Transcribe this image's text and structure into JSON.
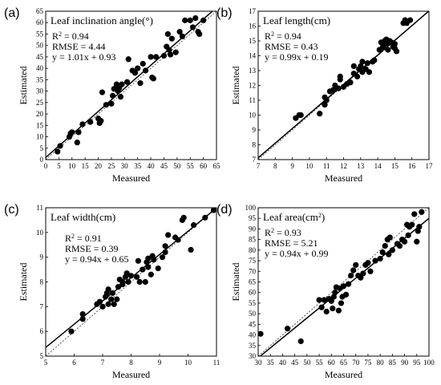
{
  "chart_data": [
    {
      "type": "scatter",
      "panel_label": "(a)",
      "title": "Leaf inclination angle(°)",
      "xlabel": "Measured",
      "ylabel": "Estimated",
      "xlim": [
        0,
        65
      ],
      "ylim": [
        0,
        65
      ],
      "xticks": [
        0,
        5,
        10,
        15,
        20,
        25,
        30,
        35,
        40,
        45,
        50,
        55,
        60,
        65
      ],
      "yticks": [
        0,
        5,
        10,
        15,
        20,
        25,
        30,
        35,
        40,
        45,
        50,
        55,
        60,
        65
      ],
      "stats": {
        "r2": "R² = 0.94",
        "rmse": "RMSE = 4.44",
        "equation": "y = 1.01x + 0.93"
      },
      "fit": {
        "slope": 1.01,
        "intercept": 0.93
      },
      "points": [
        [
          4.5,
          3.5
        ],
        [
          5.5,
          6
        ],
        [
          9,
          10
        ],
        [
          9.5,
          11.5
        ],
        [
          10,
          12
        ],
        [
          12,
          7.5
        ],
        [
          12.5,
          12
        ],
        [
          14,
          15.5
        ],
        [
          17,
          16.5
        ],
        [
          20,
          18
        ],
        [
          20.5,
          16
        ],
        [
          21,
          17
        ],
        [
          21.5,
          29.5
        ],
        [
          23,
          24
        ],
        [
          25,
          24.5
        ],
        [
          25.5,
          28
        ],
        [
          26,
          31
        ],
        [
          27,
          33
        ],
        [
          27.5,
          30
        ],
        [
          28,
          31.5
        ],
        [
          28.5,
          27.5
        ],
        [
          29,
          33
        ],
        [
          31,
          34
        ],
        [
          31.5,
          44
        ],
        [
          33,
          39
        ],
        [
          34,
          38
        ],
        [
          35,
          40
        ],
        [
          36,
          33.5
        ],
        [
          37,
          42
        ],
        [
          38,
          39
        ],
        [
          40,
          45
        ],
        [
          40.5,
          36
        ],
        [
          41,
          35.5
        ],
        [
          42,
          45
        ],
        [
          45,
          45.5
        ],
        [
          46,
          49.5
        ],
        [
          46.5,
          55
        ],
        [
          47,
          48
        ],
        [
          47.5,
          46
        ],
        [
          48,
          53
        ],
        [
          49.5,
          47
        ],
        [
          51,
          56
        ],
        [
          52,
          54
        ],
        [
          53,
          61
        ],
        [
          55,
          61
        ],
        [
          56,
          58
        ],
        [
          57,
          62
        ],
        [
          58,
          56
        ],
        [
          58.5,
          55
        ],
        [
          60,
          61
        ]
      ]
    },
    {
      "type": "scatter",
      "panel_label": "(b)",
      "title": "Leaf length(cm)",
      "xlabel": "Measured",
      "ylabel": "Estimated",
      "xlim": [
        7,
        17
      ],
      "ylim": [
        7,
        17
      ],
      "xticks": [
        7,
        8,
        9,
        10,
        11,
        12,
        13,
        14,
        15,
        16,
        17
      ],
      "yticks": [
        7,
        8,
        9,
        10,
        11,
        12,
        13,
        14,
        15,
        16,
        17
      ],
      "stats": {
        "r2": "R² = 0.94",
        "rmse": "RMSE = 0.43",
        "equation": "y = 0.99x + 0.19"
      },
      "fit": {
        "slope": 0.99,
        "intercept": 0.19
      },
      "points": [
        [
          9.2,
          9.8
        ],
        [
          9.4,
          10
        ],
        [
          9.5,
          10
        ],
        [
          10.6,
          10.1
        ],
        [
          10.9,
          10.7
        ],
        [
          10.9,
          11.2
        ],
        [
          11,
          11
        ],
        [
          11.2,
          11.6
        ],
        [
          11.4,
          11.7
        ],
        [
          11.5,
          12
        ],
        [
          11.7,
          11.8
        ],
        [
          11.8,
          12.4
        ],
        [
          11.8,
          12.6
        ],
        [
          12,
          11.9
        ],
        [
          12.2,
          12.1
        ],
        [
          12.4,
          12.2
        ],
        [
          12.6,
          12.8
        ],
        [
          12.6,
          13.3
        ],
        [
          12.8,
          12.6
        ],
        [
          12.9,
          13.1
        ],
        [
          13,
          13.3
        ],
        [
          13.1,
          13.6
        ],
        [
          13.1,
          12.9
        ],
        [
          13.3,
          13.1
        ],
        [
          13.4,
          13.5
        ],
        [
          13.5,
          12.9
        ],
        [
          13.7,
          13.6
        ],
        [
          13.8,
          13.7
        ],
        [
          14.1,
          14.4
        ],
        [
          14.2,
          14.9
        ],
        [
          14.3,
          14.6
        ],
        [
          14.4,
          15
        ],
        [
          14.5,
          15.1
        ],
        [
          14.5,
          14.8
        ],
        [
          14.6,
          14.4
        ],
        [
          14.7,
          15
        ],
        [
          14.8,
          14.9
        ],
        [
          14.9,
          14.6
        ],
        [
          15,
          14.5
        ],
        [
          15,
          14.8
        ],
        [
          15.1,
          14.3
        ],
        [
          15.5,
          16.2
        ],
        [
          15.6,
          16.4
        ],
        [
          15.7,
          16.2
        ],
        [
          15.9,
          16.4
        ]
      ]
    },
    {
      "type": "scatter",
      "panel_label": "(c)",
      "title": "Leaf width(cm)",
      "xlabel": "Measured",
      "ylabel": "Estimated",
      "xlim": [
        5,
        11
      ],
      "ylim": [
        5,
        11
      ],
      "xticks": [
        5,
        6,
        7,
        8,
        9,
        10,
        11
      ],
      "yticks": [
        5,
        6,
        7,
        8,
        9,
        10,
        11
      ],
      "stats": {
        "r2": "R² = 0.91",
        "rmse": "RMSE = 0.39",
        "equation": "y = 0.94x + 0.65"
      },
      "fit": {
        "slope": 0.94,
        "intercept": 0.65
      },
      "points": [
        [
          5.9,
          6
        ],
        [
          6.3,
          6.5
        ],
        [
          6.3,
          6.7
        ],
        [
          6.8,
          7.1
        ],
        [
          6.9,
          7.2
        ],
        [
          7,
          7
        ],
        [
          7.1,
          7.4
        ],
        [
          7.15,
          7.55
        ],
        [
          7.2,
          7.1
        ],
        [
          7.2,
          7.7
        ],
        [
          7.3,
          7.3
        ],
        [
          7.35,
          7.55
        ],
        [
          7.4,
          7.1
        ],
        [
          7.5,
          7.3
        ],
        [
          7.55,
          7.8
        ],
        [
          7.6,
          8.1
        ],
        [
          7.7,
          8
        ],
        [
          7.7,
          7.9
        ],
        [
          7.8,
          8.2
        ],
        [
          7.85,
          8.35
        ],
        [
          7.9,
          8
        ],
        [
          8,
          8.25
        ],
        [
          8.2,
          8.2
        ],
        [
          8.25,
          8.85
        ],
        [
          8.3,
          8
        ],
        [
          8.4,
          8.5
        ],
        [
          8.5,
          8
        ],
        [
          8.55,
          8.8
        ],
        [
          8.6,
          8.6
        ],
        [
          8.6,
          8.95
        ],
        [
          8.7,
          8.3
        ],
        [
          8.75,
          9.05
        ],
        [
          8.8,
          8.9
        ],
        [
          8.95,
          8.55
        ],
        [
          9.1,
          9
        ],
        [
          9.2,
          9.2
        ],
        [
          9.2,
          9.45
        ],
        [
          9.3,
          9.9
        ],
        [
          9.55,
          9.8
        ],
        [
          9.65,
          9.7
        ],
        [
          9.8,
          10.5
        ],
        [
          9.85,
          10.6
        ],
        [
          10.1,
          9.3
        ],
        [
          10.2,
          10.3
        ],
        [
          10.6,
          10.6
        ],
        [
          10.9,
          10.9
        ]
      ]
    },
    {
      "type": "scatter",
      "panel_label": "(d)",
      "title": "Leaf area(cm²)",
      "xlabel": "Measured",
      "ylabel": "Estimated",
      "xlim": [
        30,
        100
      ],
      "ylim": [
        30,
        100
      ],
      "xticks": [
        30,
        35,
        40,
        45,
        50,
        55,
        60,
        65,
        70,
        75,
        80,
        85,
        90,
        95,
        100
      ],
      "yticks": [
        30,
        35,
        40,
        45,
        50,
        55,
        60,
        65,
        70,
        75,
        80,
        85,
        90,
        95,
        100
      ],
      "stats": {
        "r2": "R² = 0.93",
        "rmse": "RMSE = 5.21",
        "equation": "y = 0.94x + 0.99"
      },
      "fit": {
        "slope": 0.94,
        "intercept": 0.99
      },
      "points": [
        [
          31,
          40.5
        ],
        [
          42,
          43
        ],
        [
          47.5,
          37
        ],
        [
          55,
          56.5
        ],
        [
          56,
          53
        ],
        [
          57,
          56.5
        ],
        [
          58,
          51
        ],
        [
          59,
          57
        ],
        [
          60,
          56
        ],
        [
          60.5,
          52.5
        ],
        [
          61,
          58
        ],
        [
          61.5,
          60
        ],
        [
          62,
          62.5
        ],
        [
          63,
          51.5
        ],
        [
          63.5,
          62
        ],
        [
          64,
          55
        ],
        [
          64.5,
          58
        ],
        [
          65,
          63
        ],
        [
          66,
          59
        ],
        [
          67,
          64
        ],
        [
          68,
          68
        ],
        [
          69,
          70.5
        ],
        [
          70,
          73
        ],
        [
          71,
          68
        ],
        [
          72,
          67
        ],
        [
          73,
          69
        ],
        [
          74,
          73
        ],
        [
          75,
          74
        ],
        [
          76,
          70
        ],
        [
          78,
          75
        ],
        [
          80,
          76
        ],
        [
          81,
          79
        ],
        [
          82,
          82
        ],
        [
          83,
          85
        ],
        [
          83.5,
          78
        ],
        [
          84,
          86
        ],
        [
          85,
          80
        ],
        [
          87,
          83
        ],
        [
          88,
          82
        ],
        [
          89,
          85
        ],
        [
          90,
          84
        ],
        [
          91,
          92
        ],
        [
          91.5,
          87
        ],
        [
          92,
          91
        ],
        [
          93,
          92
        ],
        [
          94,
          97
        ],
        [
          95,
          84
        ],
        [
          95.5,
          89
        ],
        [
          96,
          91
        ],
        [
          97,
          98
        ]
      ]
    }
  ]
}
